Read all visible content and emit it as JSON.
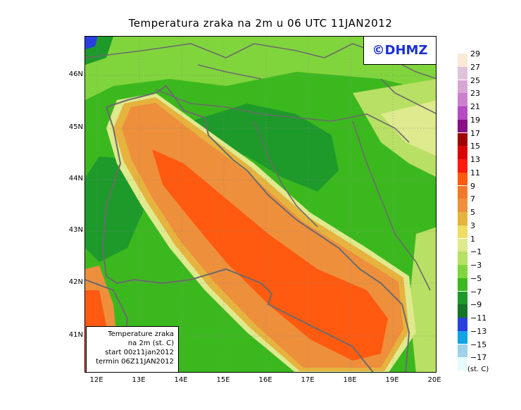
{
  "title": "Temperatura zraka na 2m u 06 UTC 11JAN2012",
  "logo": "©DHMZ",
  "y_labels": [
    "46N",
    "45N",
    "44N",
    "43N",
    "42N",
    "41N"
  ],
  "x_labels": [
    "12E",
    "13E",
    "14E",
    "15E",
    "16E",
    "17E",
    "18E",
    "19E",
    "20E"
  ],
  "info": {
    "line1": "Temperature zraka",
    "line2": "na 2m (st. C)",
    "line3": "start 00z11jan2012",
    "line4": "termin 06Z11JAN2012"
  },
  "legend": {
    "levels": [
      "29",
      "27",
      "25",
      "23",
      "21",
      "19",
      "17",
      "15",
      "13",
      "11",
      "9",
      "7",
      "5",
      "3",
      "1",
      "−1",
      "−3",
      "−5",
      "−7",
      "−9",
      "−11",
      "−13",
      "−15",
      "−17"
    ],
    "colors": [
      "#fbe9d7",
      "#dfc3da",
      "#d7a6d4",
      "#cc7fcf",
      "#b649c4",
      "#8a0f84",
      "#a00303",
      "#d90606",
      "#ff1a0f",
      "#ff5a0f",
      "#f3792a",
      "#ee8f3c",
      "#e6b33e",
      "#f0dd63",
      "#dfe98d",
      "#b8e064",
      "#80d53c",
      "#3cb81f",
      "#1d9a2a",
      "#13742a",
      "#2a3fe0",
      "#12a4e6",
      "#9fd2e8",
      "#e6fbfb"
    ],
    "units": "(st. C)"
  }
}
